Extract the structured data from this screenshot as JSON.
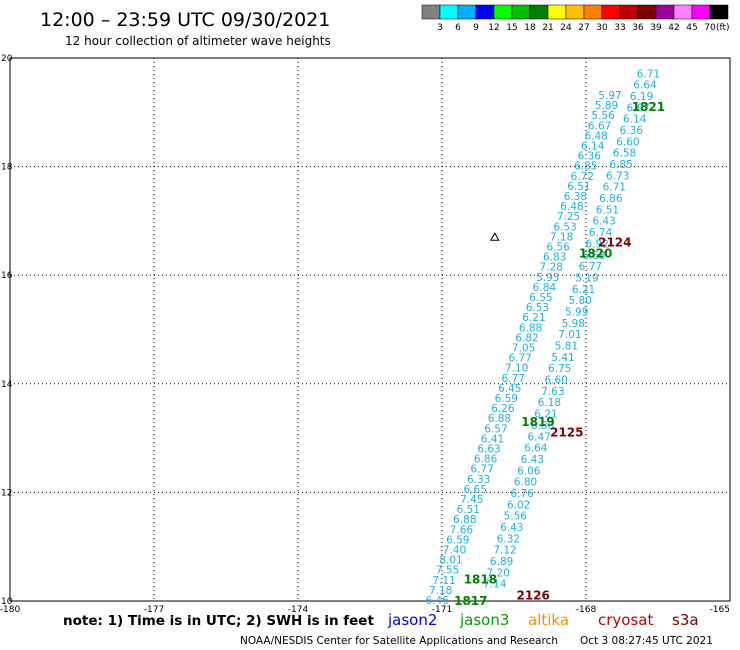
{
  "header": {
    "title": "12:00 – 23:59 UTC 09/30/2021",
    "subtitle": "12 hour collection of altimeter wave heights"
  },
  "colorbar": {
    "labels": [
      "3",
      "6",
      "9",
      "12",
      "15",
      "18",
      "21",
      "24",
      "27",
      "30",
      "33",
      "36",
      "39",
      "42",
      "45",
      "70"
    ],
    "unit": "(ft)",
    "colors": [
      "#808080",
      "#00ffff",
      "#00b0ff",
      "#0000ff",
      "#00ff00",
      "#00c000",
      "#008000",
      "#ffff00",
      "#ffc000",
      "#ff8000",
      "#ff0000",
      "#c00000",
      "#800000",
      "#a000a0",
      "#ff80ff",
      "#ff00ff",
      "#000000"
    ]
  },
  "chart_data": {
    "type": "scatter",
    "xlim": [
      -180,
      -165
    ],
    "ylim": [
      10,
      20
    ],
    "xticks": [
      "-180",
      "-177",
      "-174",
      "-171",
      "-168",
      "-165"
    ],
    "yticks": [
      "10",
      "12",
      "14",
      "16",
      "18",
      "20"
    ],
    "grid": true,
    "series": [
      {
        "name": "jason3",
        "color": "#20b0e0",
        "pass_labels": [
          {
            "text": "1817",
            "x": -170.4,
            "y": 10.0,
            "color": "#008000"
          },
          {
            "text": "1818",
            "x": -170.2,
            "y": 10.4,
            "color": "#008000"
          },
          {
            "text": "1819",
            "x": -169.0,
            "y": 13.3,
            "color": "#008000"
          },
          {
            "text": "1820",
            "x": -167.8,
            "y": 16.4,
            "color": "#008000"
          },
          {
            "text": "1821",
            "x": -166.7,
            "y": 19.1,
            "color": "#008000"
          }
        ],
        "tracks": [
          {
            "values": [
              "6.46",
              "7.18",
              "7.11",
              "7.55",
              "8.01",
              "7.40",
              "6.59",
              "7.66",
              "6.88",
              "6.51",
              "7.45",
              "6.65",
              "6.33",
              "6.77",
              "6.86",
              "6.63",
              "6.41",
              "6.57",
              "6.88",
              "6.26",
              "6.59",
              "6.45",
              "6.77",
              "7.10",
              "6.77",
              "7.05",
              "6.82",
              "6.88",
              "6.21",
              "6.53",
              "6.55",
              "6.84",
              "5.93",
              "7.28",
              "6.83",
              "6.56",
              "7.18",
              "6.53",
              "7.25",
              "6.48",
              "6.38",
              "6.51",
              "6.72",
              "6.85",
              "6.36",
              "6.14",
              "6.48",
              "6.67",
              "5.56",
              "5.89",
              "5.97"
            ],
            "x0": -171.1,
            "y0": 10.0,
            "x1": -167.5,
            "y1": 19.3
          },
          {
            "values": [
              "7.14",
              "7.20",
              "6.89",
              "7.12",
              "6.32",
              "6.43",
              "5.56",
              "6.02",
              "6.76",
              "6.80",
              "6.06",
              "6.43",
              "6.64",
              "6.47",
              "6.80",
              "6.21",
              "6.18",
              "7.63",
              "6.60",
              "6.75",
              "5.41",
              "5.81",
              "7.01",
              "5.98",
              "5.99",
              "5.80",
              "6.21",
              "5.19",
              "6.77",
              "6.68",
              "6.92",
              "6.74",
              "6.43",
              "6.51",
              "6.86",
              "6.71",
              "6.73",
              "6.85",
              "6.58",
              "6.60",
              "6.36",
              "6.14",
              "6.67",
              "6.19",
              "6.64",
              "6.71"
            ],
            "x0": -169.9,
            "y0": 10.3,
            "x1": -166.7,
            "y1": 19.7
          }
        ]
      },
      {
        "name": "cryosat",
        "color": "#800000",
        "pass_labels": [
          {
            "text": "2124",
            "x": -167.4,
            "y": 16.6,
            "color": "#800000"
          },
          {
            "text": "2125",
            "x": -168.4,
            "y": 13.1,
            "color": "#800000"
          },
          {
            "text": "2126",
            "x": -169.1,
            "y": 10.1,
            "color": "#800000"
          }
        ]
      }
    ],
    "marker": {
      "x": -169.9,
      "y": 16.7
    }
  },
  "legend": {
    "note": "note: 1) Time is in UTC; 2) SWH is in feet",
    "items": [
      {
        "label": "jason2",
        "color": "#0000ff"
      },
      {
        "label": "jason3",
        "color": "#00a000"
      },
      {
        "label": "altika",
        "color": "#ff8c00"
      },
      {
        "label": "cryosat",
        "color": "#c00000"
      },
      {
        "label": "s3a",
        "color": "#800000"
      }
    ]
  },
  "footer": {
    "credit": "NOAA/NESDIS Center for Satellite Applications and Research",
    "timestamp": "Oct  3 08:27:45 UTC 2021"
  }
}
